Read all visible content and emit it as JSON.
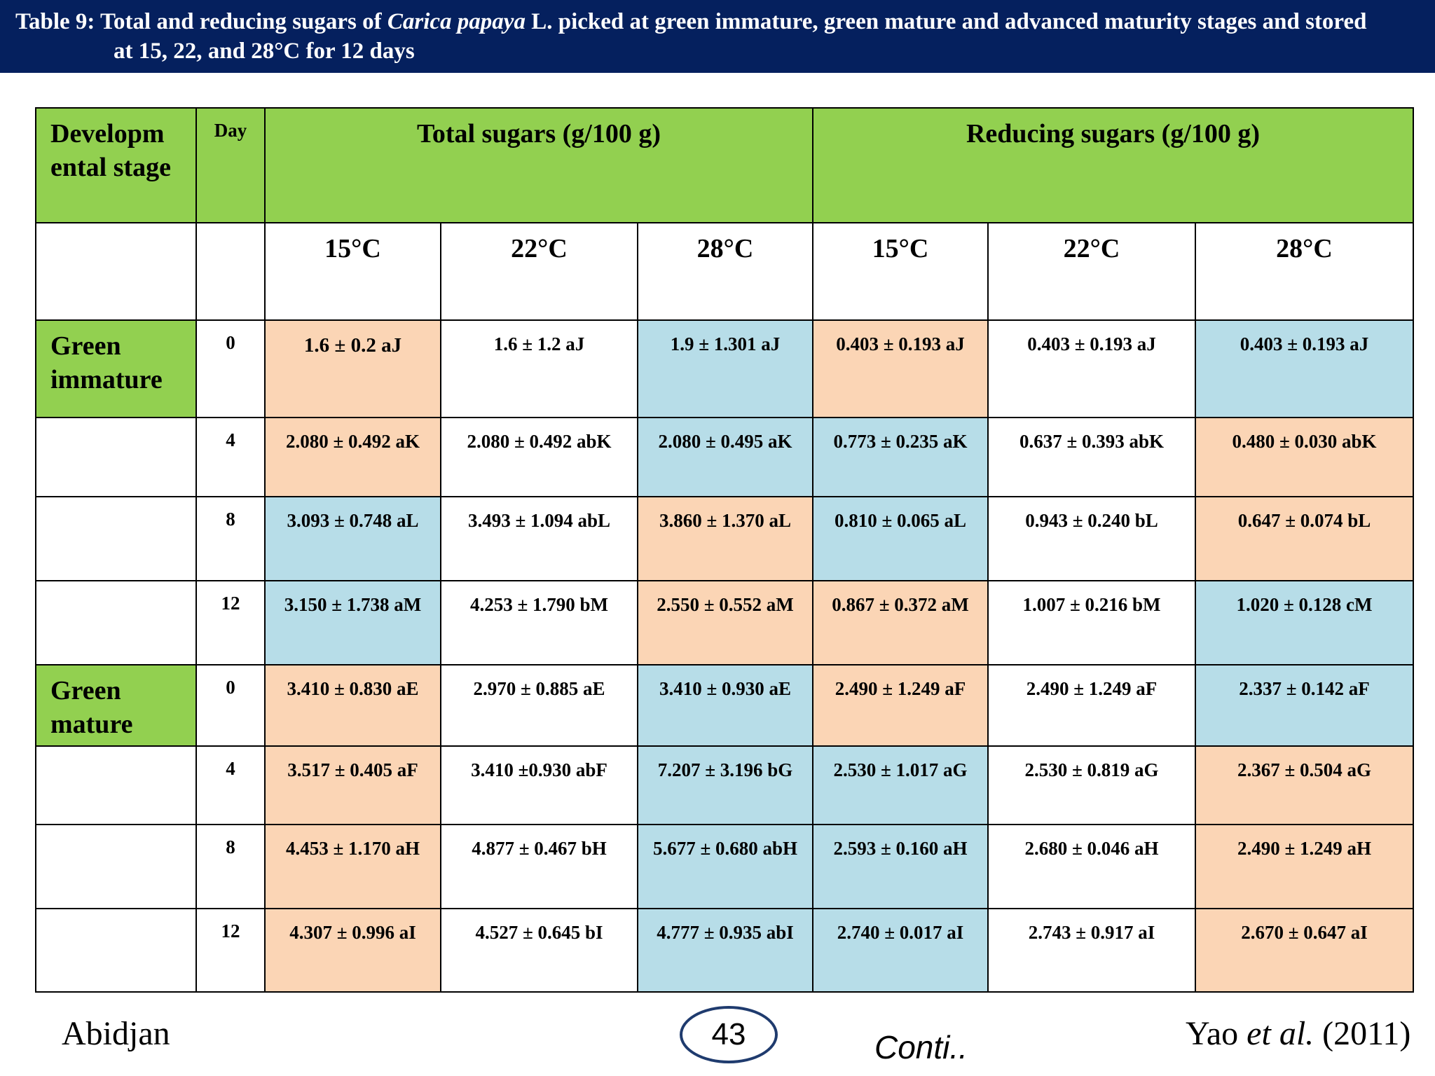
{
  "title": {
    "prefix": "Table  9: Total and reducing sugars of ",
    "species": "Carica papaya",
    "middle": " L. picked at green immature, green mature and advanced maturity stages and stored",
    "line2": "at 15, 22, and 28°C for 12 days"
  },
  "table": {
    "header": {
      "stage_label": "Developm ental stage",
      "day_label": "Day",
      "total_sugars": "Total sugars (g/100 g)",
      "reducing_sugars": "Reducing sugars (g/100 g)",
      "temps": [
        "15°C",
        "22°C",
        "28°C",
        "15°C",
        "22°C",
        "28°C"
      ]
    },
    "rows": [
      {
        "stage": "Green immature",
        "day": "0",
        "values": [
          "1.6 ± 0.2 aJ",
          "1.6 ± 1.2 aJ",
          "1.9 ± 1.301 aJ",
          "0.403 ± 0.193 aJ",
          "0.403 ± 0.193 aJ",
          "0.403 ± 0.193 aJ"
        ]
      },
      {
        "stage": "",
        "day": "4",
        "values": [
          "2.080 ± 0.492 aK",
          "2.080 ± 0.492 abK",
          "2.080 ± 0.495 aK",
          "0.773 ± 0.235 aK",
          "0.637 ± 0.393 abK",
          "0.480 ± 0.030 abK"
        ]
      },
      {
        "stage": "",
        "day": "8",
        "values": [
          "3.093 ± 0.748 aL",
          "3.493 ± 1.094 abL",
          "3.860 ± 1.370 aL",
          "0.810 ± 0.065 aL",
          "0.943 ± 0.240 bL",
          "0.647 ± 0.074 bL"
        ]
      },
      {
        "stage": "",
        "day": "12",
        "values": [
          "3.150 ± 1.738 aM",
          "4.253 ± 1.790 bM",
          "2.550 ± 0.552 aM",
          "0.867 ± 0.372 aM",
          "1.007 ± 0.216 bM",
          "1.020 ± 0.128 cM"
        ]
      },
      {
        "stage": "Green mature",
        "day": "0",
        "values": [
          "3.410 ± 0.830 aE",
          "2.970 ± 0.885 aE",
          "3.410 ± 0.930 aE",
          "2.490 ± 1.249 aF",
          "2.490 ± 1.249 aF",
          "2.337 ± 0.142 aF"
        ]
      },
      {
        "stage": "",
        "day": "4",
        "values": [
          "3.517 ± 0.405 aF",
          "3.410 ±0.930 abF",
          "7.207 ± 3.196 bG",
          "2.530 ± 1.017 aG",
          "2.530 ± 0.819 aG",
          "2.367 ± 0.504 aG"
        ]
      },
      {
        "stage": "",
        "day": "8",
        "values": [
          "4.453 ± 1.170 aH",
          "4.877 ± 0.467 bH",
          "5.677 ± 0.680 abH",
          "2.593 ± 0.160 aH",
          "2.680 ± 0.046 aH",
          "2.490 ± 1.249 aH"
        ]
      },
      {
        "stage": "",
        "day": "12",
        "values": [
          "4.307 ± 0.996 aI",
          "4.527 ± 0.645 bI",
          "4.777 ± 0.935 abI",
          "2.740 ± 0.017 aI",
          "2.743 ± 0.917 aI",
          "2.670 ± 0.647 aI"
        ]
      }
    ],
    "cell_colors": {
      "header_green": "#92d050",
      "peach": "#fbd5b5",
      "blue": "#b7dde8",
      "white": "#ffffff"
    }
  },
  "footer": {
    "location": "Abidjan",
    "page_number": "43",
    "continued": "Conti..",
    "citation_author": "Yao ",
    "citation_etal": "et al.",
    "citation_year": " (2011)"
  },
  "colors": {
    "title_bar": "#05205e",
    "title_text": "#ffffff"
  }
}
